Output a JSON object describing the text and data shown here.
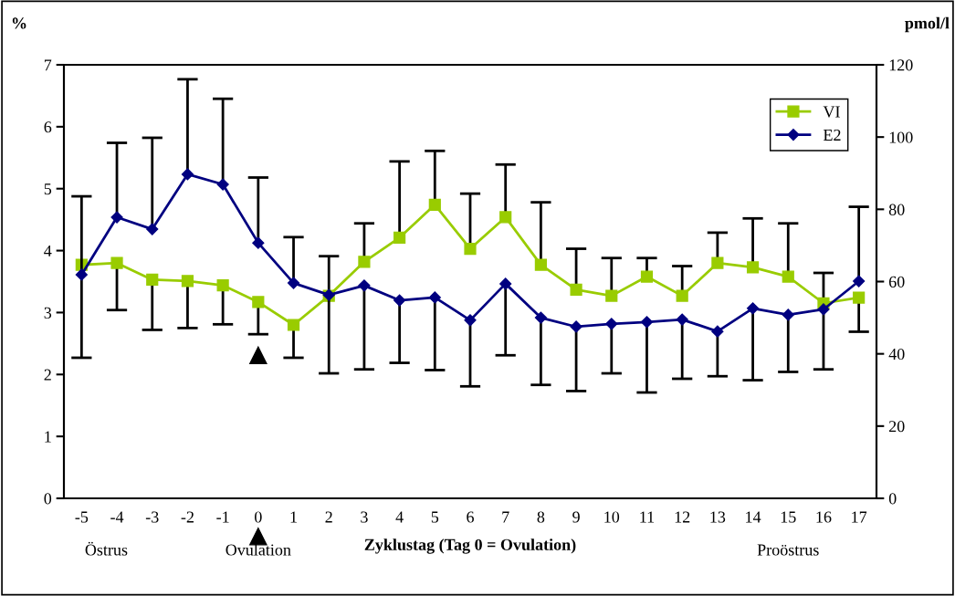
{
  "chart_data": {
    "type": "line",
    "categories": [
      "-5",
      "-4",
      "-3",
      "-2",
      "-1",
      "0",
      "1",
      "2",
      "3",
      "4",
      "5",
      "6",
      "7",
      "8",
      "9",
      "10",
      "11",
      "12",
      "13",
      "14",
      "15",
      "16",
      "17"
    ],
    "series": [
      {
        "name": "VI",
        "color": "#99cc00",
        "marker": "square",
        "values": [
          3.77,
          3.8,
          3.53,
          3.51,
          3.44,
          3.17,
          2.8,
          3.27,
          3.82,
          4.21,
          4.74,
          4.03,
          4.54,
          3.77,
          3.37,
          3.27,
          3.58,
          3.27,
          3.8,
          3.73,
          3.58,
          3.15,
          3.24
        ],
        "errors": [
          [
            2.27,
            3.77
          ],
          [
            3.04,
            3.8
          ],
          [
            2.72,
            3.53
          ],
          [
            2.75,
            3.51
          ],
          [
            2.81,
            3.44
          ],
          [
            2.65,
            3.17
          ],
          [
            2.27,
            2.8
          ],
          [
            3.27,
            3.91
          ],
          [
            3.82,
            4.44
          ],
          [
            4.21,
            5.44
          ],
          [
            4.74,
            5.61
          ],
          [
            4.03,
            4.92
          ],
          [
            4.54,
            5.39
          ],
          [
            3.77,
            4.78
          ],
          [
            3.37,
            4.03
          ],
          [
            3.27,
            3.88
          ],
          [
            3.58,
            3.88
          ],
          [
            3.27,
            3.75
          ],
          [
            3.8,
            4.29
          ],
          [
            3.73,
            4.52
          ],
          [
            3.58,
            4.44
          ],
          [
            3.15,
            3.64
          ],
          [
            2.69,
            3.24
          ]
        ]
      },
      {
        "name": "E2",
        "color": "#000080",
        "marker": "diamond",
        "axis": "y2",
        "values": [
          61.9,
          77.8,
          74.5,
          89.7,
          86.9,
          70.7,
          59.6,
          56.3,
          58.9,
          54.8,
          55.6,
          49.3,
          59.4,
          50.0,
          47.5,
          48.3,
          48.8,
          49.5,
          46.2,
          52.6,
          50.8,
          52.3,
          60.1
        ],
        "errors": [
          [
            61.9,
            83.6
          ],
          [
            77.8,
            98.4
          ],
          [
            74.5,
            99.8
          ],
          [
            89.7,
            116
          ],
          [
            86.9,
            110.6
          ],
          [
            70.7,
            88.8
          ],
          [
            59.6,
            72.3
          ],
          [
            34.6,
            56.3
          ],
          [
            35.7,
            58.9
          ],
          [
            37.5,
            54.8
          ],
          [
            35.5,
            55.6
          ],
          [
            31.0,
            49.3
          ],
          [
            39.6,
            59.4
          ],
          [
            31.4,
            50.0
          ],
          [
            29.7,
            47.5
          ],
          [
            34.6,
            48.3
          ],
          [
            29.3,
            48.8
          ],
          [
            33.1,
            49.5
          ],
          [
            33.8,
            46.2
          ],
          [
            32.7,
            52.6
          ],
          [
            35.0,
            50.8
          ],
          [
            35.7,
            52.3
          ],
          [
            60.1,
            80.7
          ]
        ]
      }
    ],
    "xlabel": "Zyklustag (Tag 0 = Ovulation)",
    "ylabel": "%",
    "y2label": "pmol/l",
    "ylim": [
      0,
      7
    ],
    "yticks": [
      0,
      1,
      2,
      3,
      4,
      5,
      6,
      7
    ],
    "y2lim": [
      0,
      120
    ],
    "y2ticks": [
      0,
      20,
      40,
      60,
      80,
      100,
      120
    ],
    "annotations": [
      "Östrus",
      "Ovulation",
      "Proöstrus"
    ],
    "legend": "top right",
    "grid": false,
    "line_style": "solid"
  }
}
